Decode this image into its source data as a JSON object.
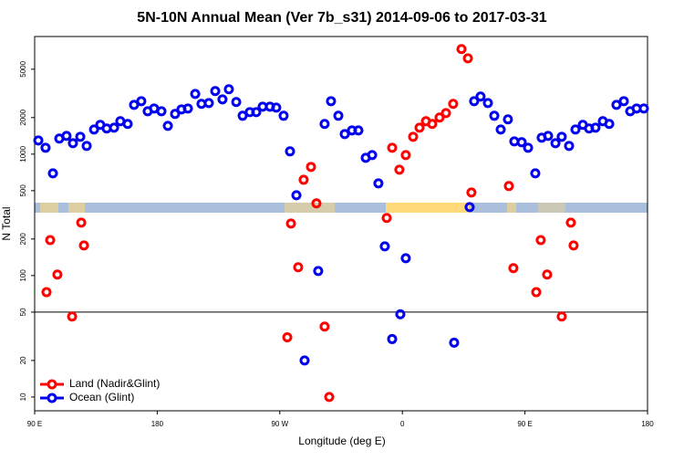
{
  "chart_data": {
    "type": "scatter",
    "title": "5N-10N Annual Mean (Ver 7b_s31)   2014-09-06 to 2017-03-31",
    "x_label": "Longitude (deg E)",
    "y_label": "N Total",
    "log_y": true,
    "legend": "bottom-left",
    "hline": 50,
    "xlim": [
      90,
      540
    ],
    "ylim": [
      7.7,
      9300
    ],
    "xticks": [
      {
        "value": 90,
        "label": "90 E"
      },
      {
        "value": 180,
        "label": "180"
      },
      {
        "value": 270,
        "label": "90 W"
      },
      {
        "value": 360,
        "label": "0"
      },
      {
        "value": 450,
        "label": "90 E"
      },
      {
        "value": 540,
        "label": "180"
      }
    ],
    "yticks": [
      10,
      20,
      50,
      100,
      200,
      500,
      1000,
      2000,
      5000
    ],
    "series": [
      {
        "name": "Land (Nadir&Glint)",
        "color": "#ff0000",
        "x": [
          98.7,
          101.4,
          106.7,
          117.5,
          124.2,
          126.2,
          275.5,
          278.2,
          283.5,
          287.5,
          292.9,
          296.9,
          302.9,
          306.3,
          348.5,
          352.5,
          357.8,
          362.5,
          367.9,
          372.6,
          377.3,
          381.9,
          387.3,
          392.0,
          397.3,
          403.4,
          408.1,
          410.7,
          438.2,
          441.5,
          458.3,
          461.6,
          466.3,
          477.0,
          483.7,
          485.7
        ],
        "values": [
          73,
          196,
          102,
          46,
          273,
          177,
          31,
          268,
          117,
          615,
          785,
          393,
          38,
          10,
          298,
          1129,
          745,
          982,
          1390,
          1652,
          1866,
          1772,
          2000,
          2178,
          2594,
          7328,
          6152,
          483,
          546,
          115,
          73,
          196,
          102,
          46,
          273,
          177
        ]
      },
      {
        "name": "Ocean (Glint)",
        "color": "#0000ee",
        "x": [
          92.7,
          98.0,
          103.4,
          108.1,
          113.4,
          118.1,
          123.5,
          128.2,
          133.6,
          138.2,
          142.9,
          148.3,
          152.9,
          158.3,
          163.0,
          168.3,
          173.0,
          177.7,
          183.1,
          187.8,
          193.1,
          197.8,
          202.5,
          207.9,
          212.5,
          217.9,
          222.6,
          227.9,
          232.6,
          238.0,
          242.7,
          248.0,
          252.7,
          257.4,
          262.8,
          267.4,
          272.8,
          277.5,
          282.2,
          288.2,
          298.2,
          302.9,
          307.6,
          313.0,
          317.7,
          323.0,
          327.7,
          333.1,
          337.8,
          342.4,
          347.1,
          352.5,
          358.5,
          362.5,
          398.0,
          409.4,
          412.7,
          417.4,
          422.8,
          427.5,
          432.2,
          437.5,
          442.2,
          447.6,
          452.3,
          457.6,
          462.3,
          467.0,
          472.4,
          477.0,
          482.4,
          487.1,
          492.5,
          497.1,
          501.8,
          507.2,
          511.9,
          517.2,
          522.6,
          527.3,
          532.0,
          537.3
        ],
        "values": [
          1297,
          1129,
          695,
          1343,
          1413,
          1231,
          1390,
          1169,
          1596,
          1742,
          1625,
          1652,
          1866,
          1772,
          2547,
          2730,
          2254,
          2377,
          2254,
          1710,
          2143,
          2336,
          2377,
          3133,
          2594,
          2636,
          3304,
          2825,
          3420,
          2685,
          2070,
          2218,
          2218,
          2460,
          2460,
          2416,
          2070,
          1054,
          459,
          20,
          109,
          1772,
          2730,
          2070,
          1464,
          1567,
          1567,
          933,
          982,
          574,
          174,
          30,
          48,
          139,
          28,
          366,
          2730,
          2978,
          2636,
          2070,
          1596,
          1932,
          1274,
          1253,
          1129,
          695,
          1366,
          1413,
          1231,
          1390,
          1169,
          1596,
          1742,
          1625,
          1652,
          1866,
          1772,
          2547,
          2730,
          2254,
          2377,
          2377
        ]
      }
    ]
  }
}
